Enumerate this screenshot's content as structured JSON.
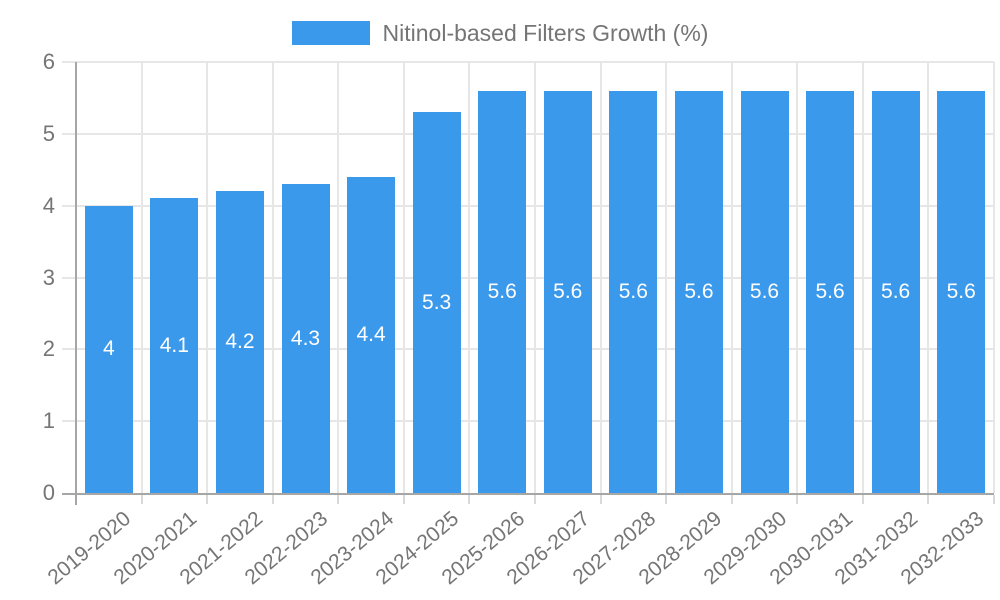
{
  "legend": {
    "label": "Nitinol-based Filters Growth (%)"
  },
  "chart_data": {
    "type": "bar",
    "categories": [
      "2019-2020",
      "2020-2021",
      "2021-2022",
      "2022-2023",
      "2023-2024",
      "2024-2025",
      "2025-2026",
      "2026-2027",
      "2027-2028",
      "2028-2029",
      "2029-2030",
      "2030-2031",
      "2031-2032",
      "2032-2033"
    ],
    "series": [
      {
        "name": "Nitinol-based Filters Growth (%)",
        "values": [
          4,
          4.1,
          4.2,
          4.3,
          4.4,
          5.3,
          5.6,
          5.6,
          5.6,
          5.6,
          5.6,
          5.6,
          5.6,
          5.6
        ]
      }
    ],
    "ylim": [
      0,
      6
    ],
    "yticks": [
      0,
      1,
      2,
      3,
      4,
      5,
      6
    ],
    "grid": true,
    "legend_position": "top-center",
    "value_labels_position": "inside-center",
    "x_tick_rotation_deg": -40,
    "colors": {
      "bar": "#3b99ec",
      "value_label": "#ffffff",
      "axis_text": "#757575",
      "legend_text": "#757575",
      "gridline": "#e6e6e6",
      "x_tick": "#d9d9d9",
      "axis_line": "#a6a6a6"
    }
  }
}
